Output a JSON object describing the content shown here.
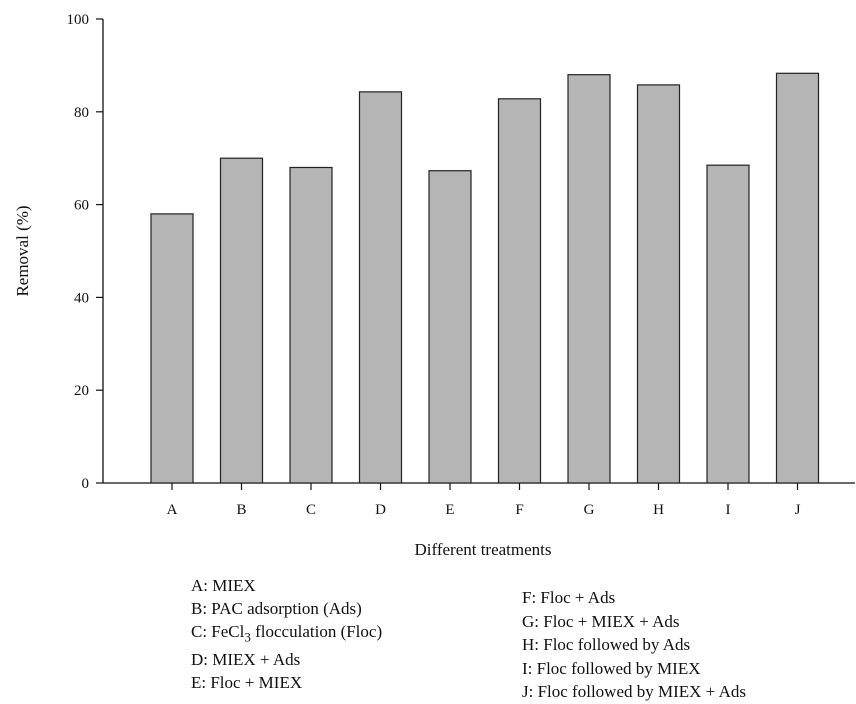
{
  "chart_data": {
    "type": "bar",
    "categories": [
      "A",
      "B",
      "C",
      "D",
      "E",
      "F",
      "G",
      "H",
      "I",
      "J"
    ],
    "values": [
      58,
      70,
      68,
      84.3,
      67.3,
      82.8,
      88,
      85.8,
      68.5,
      88.3
    ],
    "xlabel": "Different treatments",
    "ylabel": "Removal (%)",
    "ylim": [
      0,
      100
    ],
    "yticks": [
      "0",
      "20",
      "40",
      "60",
      "80",
      "100"
    ],
    "grid": false,
    "legend_left": [
      {
        "key": "A",
        "text": "A: MIEX"
      },
      {
        "key": "B",
        "text": "B: PAC adsorption (Ads)"
      },
      {
        "key": "C",
        "text_pre": "C: FeCl",
        "sub": "3",
        "text_post": " flocculation (Floc)"
      },
      {
        "key": "D",
        "text": "D: MIEX + Ads"
      },
      {
        "key": "E",
        "text": "E: Floc + MIEX"
      }
    ],
    "legend_right": [
      {
        "key": "F",
        "text": "F: Floc + Ads"
      },
      {
        "key": "G",
        "text": "G: Floc + MIEX + Ads"
      },
      {
        "key": "H",
        "text": "H: Floc followed by Ads"
      },
      {
        "key": "I",
        "text": "I: Floc followed by MIEX"
      },
      {
        "key": "J",
        "text": "J: Floc followed by MIEX + Ads"
      }
    ],
    "colors": {
      "bar_fill": "#b5b5b5",
      "bar_stroke": "#222222",
      "axis": "#111111"
    }
  }
}
